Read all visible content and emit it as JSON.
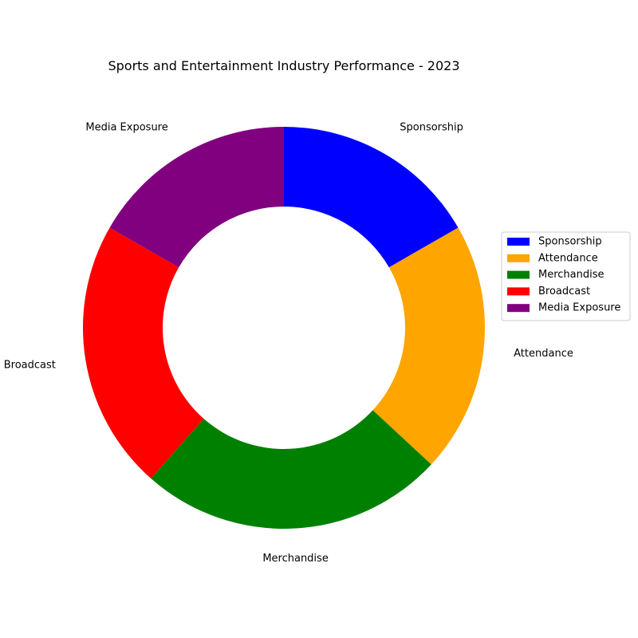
{
  "chart_data": {
    "type": "pie",
    "variant": "donut",
    "title": "Sports and Entertainment Industry Performance - 2023",
    "categories": [
      "Sponsorship",
      "Attendance",
      "Merchandise",
      "Broadcast",
      "Media Exposure"
    ],
    "values": [
      16.7,
      20.2,
      24.6,
      21.8,
      16.7
    ],
    "colors": [
      "#0000ff",
      "#ffa500",
      "#008000",
      "#ff0000",
      "#800080"
    ],
    "start_angle_deg": 90,
    "direction": "clockwise",
    "legend": {
      "placement": "right",
      "entries": [
        "Sponsorship",
        "Attendance",
        "Merchandise",
        "Broadcast",
        "Media Exposure"
      ]
    }
  }
}
